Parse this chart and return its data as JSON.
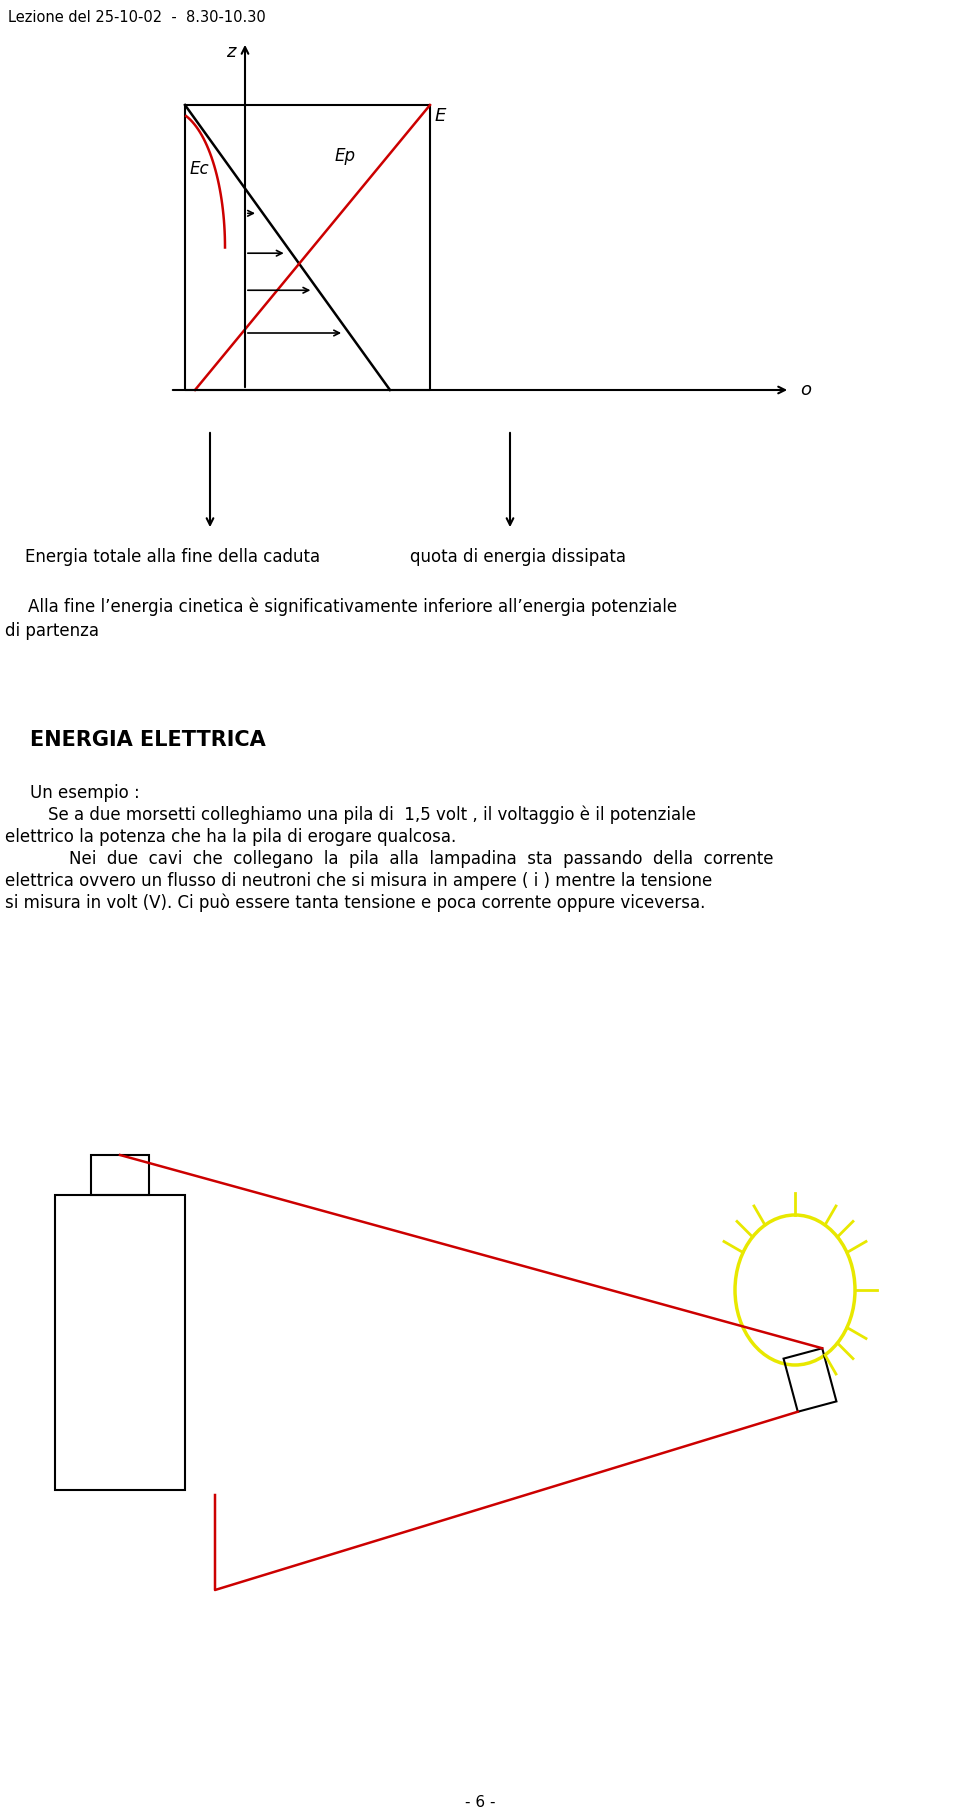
{
  "header": "Lezione del 25-10-02  -  8.30-10.30",
  "bg_color": "#ffffff",
  "text_color": "#000000",
  "title_energia": "ENERGIA ELETTRICA",
  "para1_line1": "Un esempio :",
  "para1_line2": "Se a due morsetti colleghiamo una pila di  1,5 volt , il voltaggio è il potenziale",
  "para1_line3": "elettrico la potenza che ha la pila di erogare qualcosa.",
  "para2_line1": "    Nei  due  cavi  che  collegano  la  pila  alla  lampadina  sta  passando  della  corrente",
  "para2_line2": "elettrica ovvero un flusso di neutroni che si misura in ampere ( i ) mentre la tensione",
  "para2_line3": "si misura in volt (V). Ci può essere tanta tensione e poca corrente oppure viceversa.",
  "label_left": "Energia totale alla fine della caduta",
  "label_right": "quota di energia dissipata",
  "text_alla_fine": "Alla fine l’energia cinetica è significativamente inferiore all’energia potenziale",
  "text_di_partenza": "di partenza",
  "page_num": "- 6 -",
  "red_color": "#cc0000",
  "yellow_color": "#e8e800",
  "diagram_z_label": "z",
  "diagram_o_label": "o",
  "diagram_E_label": "E",
  "diagram_Ec_label": "Ec",
  "diagram_Ep_label": "Ep"
}
